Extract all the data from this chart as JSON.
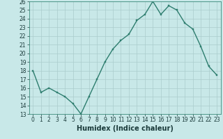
{
  "x": [
    0,
    1,
    2,
    3,
    4,
    5,
    6,
    7,
    8,
    9,
    10,
    11,
    12,
    13,
    14,
    15,
    16,
    17,
    18,
    19,
    20,
    21,
    22,
    23
  ],
  "y": [
    18,
    15.5,
    16,
    15.5,
    15,
    14.2,
    13,
    15,
    17,
    19,
    20.5,
    21.5,
    22.2,
    23.8,
    24.5,
    26,
    24.5,
    25.5,
    25,
    23.5,
    22.8,
    20.8,
    18.5,
    17.5
  ],
  "line_color": "#2d7d6e",
  "marker_color": "#2d7d6e",
  "bg_color": "#c8e8e8",
  "grid_color": "#aacccc",
  "xlabel": "Humidex (Indice chaleur)",
  "ylim": [
    13,
    26
  ],
  "xlim": [
    -0.5,
    23.5
  ],
  "yticks": [
    13,
    14,
    15,
    16,
    17,
    18,
    19,
    20,
    21,
    22,
    23,
    24,
    25,
    26
  ],
  "xticks": [
    0,
    1,
    2,
    3,
    4,
    5,
    6,
    7,
    8,
    9,
    10,
    11,
    12,
    13,
    14,
    15,
    16,
    17,
    18,
    19,
    20,
    21,
    22,
    23
  ],
  "xlabel_fontsize": 7,
  "tick_fontsize": 5.5,
  "line_width": 1.0,
  "marker_size": 2.0
}
